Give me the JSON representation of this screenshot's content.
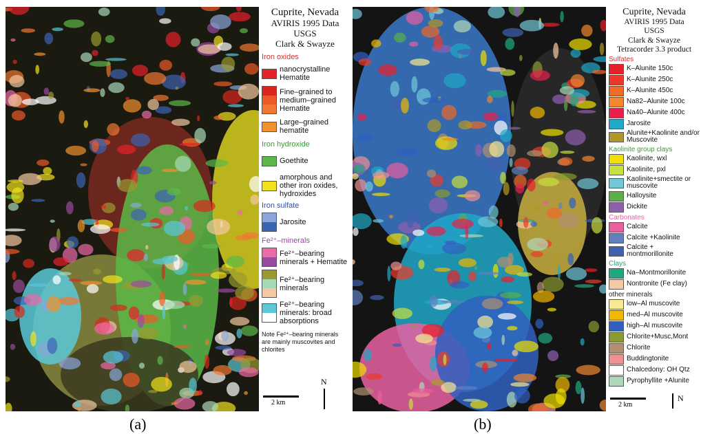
{
  "panels": [
    {
      "header": [
        "Cuprite, Nevada",
        "AVIRIS 1995 Data",
        "USGS",
        "Clark & Swayze"
      ],
      "groups": [
        {
          "title": "Iron oxides",
          "color": "#e02a2a",
          "items": [
            {
              "label": "nanocrystalline Hematite",
              "colors": [
                "#e8202a"
              ]
            },
            {
              "label": "Fine–grained to medium–grained Hematite",
              "colors": [
                "#d8281e",
                "#ee5a26",
                "#f07830"
              ]
            },
            {
              "label": "Large–grained hematite",
              "colors": [
                "#f2922e"
              ]
            }
          ]
        },
        {
          "title": "Iron hydroxide",
          "color": "#3a9a3a",
          "items": [
            {
              "label": "Goethite",
              "colors": [
                "#5cb848"
              ]
            },
            {
              "label": "amorphous and other iron oxides, hydroxides",
              "colors": [
                "#f2e21e"
              ]
            }
          ]
        },
        {
          "title": "Iron sulfate",
          "color": "#3050a8",
          "items": [
            {
              "label": "Jarosite",
              "colors": [
                "#8aa6dc",
                "#3c64b4"
              ]
            }
          ]
        },
        {
          "title": "Fe²⁺–minerals",
          "color": "#a040a8",
          "items": [
            {
              "label": "Fe²⁺–bearing minerals + Hematite",
              "colors": [
                "#ec6aa8",
                "#9a4aa0"
              ]
            },
            {
              "label": "Fe²⁺–bearing minerals",
              "colors": [
                "#9a9a30",
                "#a8d8b8",
                "#f4c8a0"
              ]
            },
            {
              "label": "Fe²⁺–bearing minerals: broad absorptions",
              "colors": [
                "#5ac8d8",
                "#ffffff"
              ]
            }
          ]
        }
      ],
      "note": "Note Fe²⁺–bearing minerals are mainly muscovites and chlorites",
      "scale": "2 km",
      "north": "N",
      "caption": "(a)"
    },
    {
      "header": [
        "Cuprite, Nevada",
        "AVIRIS 1995 Data",
        "USGS",
        "Clark & Swayze",
        "Tetracorder 3.3 product"
      ],
      "groups": [
        {
          "title": "Sulfates",
          "color": "#e02a2a",
          "items": [
            {
              "label": "K–Alunite 150c",
              "colors": [
                "#e8202a"
              ]
            },
            {
              "label": "K–Alunite 250c",
              "colors": [
                "#ec3a2a"
              ]
            },
            {
              "label": "K–Alunite 450c",
              "colors": [
                "#f06a28"
              ]
            },
            {
              "label": "Na82–Alunite 100c",
              "colors": [
                "#f08830"
              ]
            },
            {
              "label": "Na40–Alunite 400c",
              "colors": [
                "#e8204a"
              ]
            },
            {
              "label": "Jarosite",
              "colors": [
                "#20a8c8"
              ]
            },
            {
              "label": "Alunite+Kaolinite and/or Muscovite",
              "colors": [
                "#b09828"
              ]
            }
          ]
        },
        {
          "title": "Kaolinite group clays",
          "color": "#3a9a3a",
          "items": [
            {
              "label": "Kaolinite, wxl",
              "colors": [
                "#f0e000"
              ]
            },
            {
              "label": "Kaolinite, pxl",
              "colors": [
                "#c8e040"
              ]
            },
            {
              "label": "Kaolinite+smectite or muscovite",
              "colors": [
                "#70c8d8"
              ]
            },
            {
              "label": "Halloysite",
              "colors": [
                "#58b048"
              ]
            },
            {
              "label": "Dickite",
              "colors": [
                "#9060b0"
              ]
            }
          ]
        },
        {
          "title": "Carbonates",
          "color": "#e860a0",
          "items": [
            {
              "label": "Calcite",
              "colors": [
                "#e860a0"
              ]
            },
            {
              "label": "Calcite +Kaolinite",
              "colors": [
                "#6080c0"
              ]
            },
            {
              "label": "Calcite + montmorillonite",
              "colors": [
                "#4060b0"
              ]
            }
          ]
        },
        {
          "title": "Clays",
          "color": "#20a880",
          "items": [
            {
              "label": "Na–Montmorillonite",
              "colors": [
                "#20a880"
              ]
            },
            {
              "label": "Nontronite (Fe clay)",
              "colors": [
                "#f8c8a0"
              ]
            }
          ]
        },
        {
          "title": "other minerals",
          "color": "#222222",
          "items": [
            {
              "label": "low–Al muscovite",
              "colors": [
                "#f8e890"
              ]
            },
            {
              "label": "med–Al muscovite",
              "colors": [
                "#f0b800"
              ]
            },
            {
              "label": "high–Al muscovite",
              "colors": [
                "#3060c0"
              ]
            },
            {
              "label": "Chlorite+Musc,Mont",
              "colors": [
                "#8a9a30"
              ]
            },
            {
              "label": "Chlorite",
              "colors": [
                "#b09070"
              ]
            },
            {
              "label": "Buddingtonite",
              "colors": [
                "#f09090"
              ]
            },
            {
              "label": "Chalcedony: OH Qtz",
              "colors": [
                "#ffffff"
              ]
            },
            {
              "label": "Pyrophyllite +Alunite",
              "colors": [
                "#b0d8b8"
              ]
            }
          ]
        }
      ],
      "scale": "2 km",
      "north": "N",
      "caption": "(b)"
    }
  ]
}
